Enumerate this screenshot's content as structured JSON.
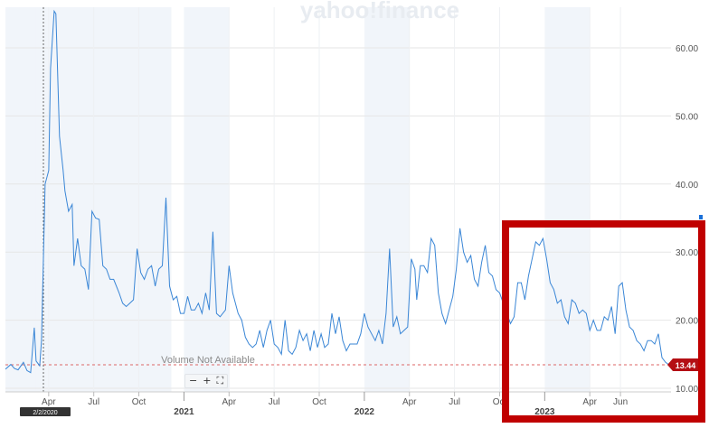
{
  "watermark": "yahoo!finance",
  "volume_note": "Volume Not Available",
  "controls": {
    "zoom_out": "−",
    "zoom_in": "+",
    "fullscreen": "⛶"
  },
  "crosshair_date": "2/2/2020",
  "current_price": "13.44",
  "colors": {
    "line": "#3a86d6",
    "shade": "#f1f5fa",
    "grid": "#e6e6e6",
    "highlight": "#c00000",
    "badge": "#b40f14",
    "ref": "#d66"
  },
  "chart_data": {
    "type": "line",
    "title": "",
    "xlabel": "",
    "ylabel": "",
    "ylim": [
      10,
      66
    ],
    "y_ticks": [
      "10.00",
      "20.00",
      "30.00",
      "40.00",
      "50.00",
      "60.00"
    ],
    "x_month_ticks": [
      {
        "label": "Apr",
        "t": 2020.25
      },
      {
        "label": "Jul",
        "t": 2020.5
      },
      {
        "label": "Oct",
        "t": 2020.75
      },
      {
        "label": "Apr",
        "t": 2021.25
      },
      {
        "label": "Jul",
        "t": 2021.5
      },
      {
        "label": "Oct",
        "t": 2021.75
      },
      {
        "label": "Apr",
        "t": 2022.25
      },
      {
        "label": "Jul",
        "t": 2022.5
      },
      {
        "label": "Oct",
        "t": 2022.75
      },
      {
        "label": "Apr",
        "t": 2023.25
      },
      {
        "label": "Jun",
        "t": 2023.42
      }
    ],
    "x_year_ticks": [
      {
        "label": "2021",
        "t": 2021.0
      },
      {
        "label": "2022",
        "t": 2022.0
      },
      {
        "label": "2023",
        "t": 2023.0
      }
    ],
    "reference_value": 13.44,
    "series": [
      {
        "points": [
          [
            2019.93,
            12.8
          ],
          [
            2019.96,
            13.5
          ],
          [
            2019.98,
            12.9
          ],
          [
            2020.0,
            12.7
          ],
          [
            2020.03,
            13.8
          ],
          [
            2020.05,
            12.6
          ],
          [
            2020.07,
            12.3
          ],
          [
            2020.09,
            18.9
          ],
          [
            2020.1,
            14.0
          ],
          [
            2020.12,
            13.3
          ],
          [
            2020.13,
            17.0
          ],
          [
            2020.15,
            40.0
          ],
          [
            2020.17,
            42.0
          ],
          [
            2020.18,
            57.0
          ],
          [
            2020.2,
            65.4
          ],
          [
            2020.21,
            65.0
          ],
          [
            2020.23,
            47.0
          ],
          [
            2020.25,
            42.0
          ],
          [
            2020.26,
            39.0
          ],
          [
            2020.28,
            36.0
          ],
          [
            2020.3,
            37.0
          ],
          [
            2020.31,
            28.0
          ],
          [
            2020.33,
            32.0
          ],
          [
            2020.35,
            28.0
          ],
          [
            2020.37,
            27.5
          ],
          [
            2020.39,
            24.5
          ],
          [
            2020.41,
            36.0
          ],
          [
            2020.43,
            35.0
          ],
          [
            2020.45,
            34.8
          ],
          [
            2020.47,
            28.0
          ],
          [
            2020.49,
            27.5
          ],
          [
            2020.51,
            26.0
          ],
          [
            2020.53,
            26.0
          ],
          [
            2020.56,
            24.0
          ],
          [
            2020.58,
            22.5
          ],
          [
            2020.6,
            22.0
          ],
          [
            2020.62,
            22.5
          ],
          [
            2020.64,
            23.0
          ],
          [
            2020.66,
            30.5
          ],
          [
            2020.68,
            27.0
          ],
          [
            2020.7,
            26.0
          ],
          [
            2020.72,
            27.5
          ],
          [
            2020.74,
            28.0
          ],
          [
            2020.76,
            25.0
          ],
          [
            2020.78,
            27.5
          ],
          [
            2020.8,
            28.0
          ],
          [
            2020.82,
            38.0
          ],
          [
            2020.84,
            25.0
          ],
          [
            2020.86,
            23.0
          ],
          [
            2020.88,
            23.5
          ],
          [
            2020.9,
            21.0
          ],
          [
            2020.92,
            21.0
          ],
          [
            2020.94,
            23.5
          ],
          [
            2020.96,
            21.5
          ],
          [
            2020.98,
            21.5
          ],
          [
            2021.0,
            22.5
          ],
          [
            2021.02,
            21.0
          ],
          [
            2021.04,
            24.0
          ],
          [
            2021.06,
            21.5
          ],
          [
            2021.08,
            33.0
          ],
          [
            2021.1,
            21.0
          ],
          [
            2021.12,
            20.5
          ],
          [
            2021.15,
            21.5
          ],
          [
            2021.17,
            28.0
          ],
          [
            2021.19,
            24.0
          ],
          [
            2021.22,
            21.0
          ],
          [
            2021.24,
            20.0
          ],
          [
            2021.26,
            17.5
          ],
          [
            2021.28,
            16.5
          ],
          [
            2021.3,
            16.0
          ],
          [
            2021.32,
            16.5
          ],
          [
            2021.34,
            18.5
          ],
          [
            2021.36,
            16.0
          ],
          [
            2021.38,
            18.5
          ],
          [
            2021.4,
            20.0
          ],
          [
            2021.42,
            16.5
          ],
          [
            2021.44,
            16.0
          ],
          [
            2021.46,
            15.0
          ],
          [
            2021.48,
            20.0
          ],
          [
            2021.5,
            15.5
          ],
          [
            2021.52,
            15.0
          ],
          [
            2021.54,
            16.0
          ],
          [
            2021.56,
            18.5
          ],
          [
            2021.58,
            17.0
          ],
          [
            2021.6,
            18.0
          ],
          [
            2021.62,
            15.5
          ],
          [
            2021.64,
            18.5
          ],
          [
            2021.66,
            16.0
          ],
          [
            2021.68,
            18.0
          ],
          [
            2021.7,
            16.0
          ],
          [
            2021.72,
            16.5
          ],
          [
            2021.74,
            21.0
          ],
          [
            2021.76,
            18.0
          ],
          [
            2021.78,
            20.5
          ],
          [
            2021.8,
            17.0
          ],
          [
            2021.82,
            15.5
          ],
          [
            2021.84,
            16.5
          ],
          [
            2021.86,
            16.5
          ],
          [
            2021.88,
            16.5
          ],
          [
            2021.9,
            18.0
          ],
          [
            2021.92,
            21.0
          ],
          [
            2021.94,
            19.0
          ],
          [
            2021.96,
            18.0
          ],
          [
            2021.98,
            17.0
          ],
          [
            2022.0,
            18.5
          ],
          [
            2022.02,
            16.5
          ],
          [
            2022.04,
            21.0
          ],
          [
            2022.06,
            30.5
          ],
          [
            2022.08,
            19.0
          ],
          [
            2022.1,
            20.5
          ],
          [
            2022.12,
            18.0
          ],
          [
            2022.14,
            18.5
          ],
          [
            2022.16,
            19.0
          ],
          [
            2022.18,
            29.0
          ],
          [
            2022.2,
            27.5
          ],
          [
            2022.21,
            23.0
          ],
          [
            2022.23,
            28.0
          ],
          [
            2022.25,
            28.0
          ],
          [
            2022.27,
            27.0
          ],
          [
            2022.29,
            32.0
          ],
          [
            2022.31,
            31.0
          ],
          [
            2022.33,
            24.0
          ],
          [
            2022.35,
            21.0
          ],
          [
            2022.37,
            19.5
          ],
          [
            2022.39,
            21.5
          ],
          [
            2022.41,
            23.5
          ],
          [
            2022.43,
            27.5
          ],
          [
            2022.45,
            33.5
          ],
          [
            2022.47,
            30.0
          ],
          [
            2022.49,
            28.5
          ],
          [
            2022.51,
            29.5
          ],
          [
            2022.53,
            26.0
          ],
          [
            2022.55,
            25.0
          ],
          [
            2022.57,
            28.5
          ],
          [
            2022.59,
            31.0
          ],
          [
            2022.61,
            27.0
          ],
          [
            2022.63,
            26.5
          ],
          [
            2022.65,
            24.5
          ],
          [
            2022.67,
            24.0
          ],
          [
            2022.69,
            22.5
          ],
          [
            2022.71,
            21.0
          ],
          [
            2022.73,
            19.5
          ],
          [
            2022.75,
            20.5
          ],
          [
            2022.77,
            25.5
          ],
          [
            2022.79,
            25.5
          ],
          [
            2022.81,
            23.0
          ],
          [
            2022.83,
            26.5
          ],
          [
            2022.85,
            29.0
          ],
          [
            2022.87,
            31.5
          ],
          [
            2022.89,
            31.0
          ],
          [
            2022.91,
            32.0
          ],
          [
            2022.93,
            29.0
          ],
          [
            2022.95,
            25.5
          ],
          [
            2022.97,
            24.5
          ],
          [
            2022.99,
            22.5
          ],
          [
            2023.01,
            23.0
          ],
          [
            2023.03,
            20.5
          ],
          [
            2023.05,
            19.5
          ],
          [
            2023.07,
            23.0
          ],
          [
            2023.09,
            22.5
          ],
          [
            2023.11,
            21.0
          ],
          [
            2023.13,
            21.5
          ],
          [
            2023.15,
            21.0
          ],
          [
            2023.17,
            18.5
          ],
          [
            2023.19,
            20.0
          ],
          [
            2023.21,
            18.5
          ],
          [
            2023.23,
            18.5
          ],
          [
            2023.25,
            20.5
          ],
          [
            2023.27,
            20.0
          ],
          [
            2023.29,
            22.0
          ],
          [
            2023.31,
            18.0
          ],
          [
            2023.33,
            25.0
          ],
          [
            2023.35,
            25.5
          ],
          [
            2023.37,
            21.5
          ],
          [
            2023.39,
            19.0
          ],
          [
            2023.41,
            18.5
          ],
          [
            2023.43,
            17.0
          ],
          [
            2023.45,
            16.5
          ],
          [
            2023.47,
            15.5
          ],
          [
            2023.49,
            17.0
          ],
          [
            2023.51,
            17.0
          ],
          [
            2023.53,
            16.5
          ],
          [
            2023.55,
            18.0
          ],
          [
            2023.57,
            14.5
          ],
          [
            2023.59,
            13.8
          ],
          [
            2023.61,
            13.44
          ]
        ]
      }
    ]
  }
}
